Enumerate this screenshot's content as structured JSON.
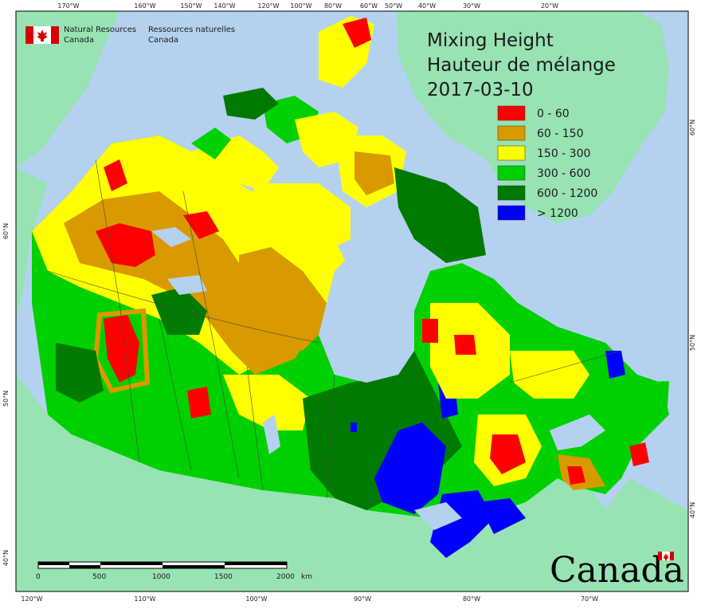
{
  "title": {
    "line1": "Mixing Height",
    "line2": "Hauteur de mélange",
    "date": "2017-03-10"
  },
  "agency": {
    "en_line1": "Natural Resources",
    "en_line2": "Canada",
    "fr_line1": "Ressources naturelles",
    "fr_line2": "Canada"
  },
  "wordmark": "Canada",
  "legend": [
    {
      "label": "0 - 60",
      "color": "#ff0000"
    },
    {
      "label": "60 - 150",
      "color": "#d99a00"
    },
    {
      "label": "150 - 300",
      "color": "#ffff00"
    },
    {
      "label": "300 - 600",
      "color": "#00d000"
    },
    {
      "label": "600 - 1200",
      "color": "#007a00"
    },
    {
      "label": "> 1200",
      "color": "#0000ff"
    }
  ],
  "graticule": {
    "top": [
      "170°W",
      "160°W",
      "150°W",
      "140°W",
      "120°W",
      "100°W",
      "80°W",
      "60°W",
      "50°W",
      "40°W",
      "30°W",
      "20°W"
    ],
    "bottom": [
      "120°W",
      "110°W",
      "100°W",
      "90°W",
      "80°W",
      "70°W"
    ],
    "left": [
      "60°N",
      "50°N",
      "40°N"
    ],
    "right": [
      "60°N",
      "50°N",
      "40°N"
    ]
  },
  "scalebar": {
    "ticks": [
      "0",
      "500",
      "1000",
      "1500",
      "2000"
    ],
    "unit": "km"
  },
  "colors": {
    "ocean": "#b4d2ef",
    "land_outside": "#97e3b3"
  }
}
